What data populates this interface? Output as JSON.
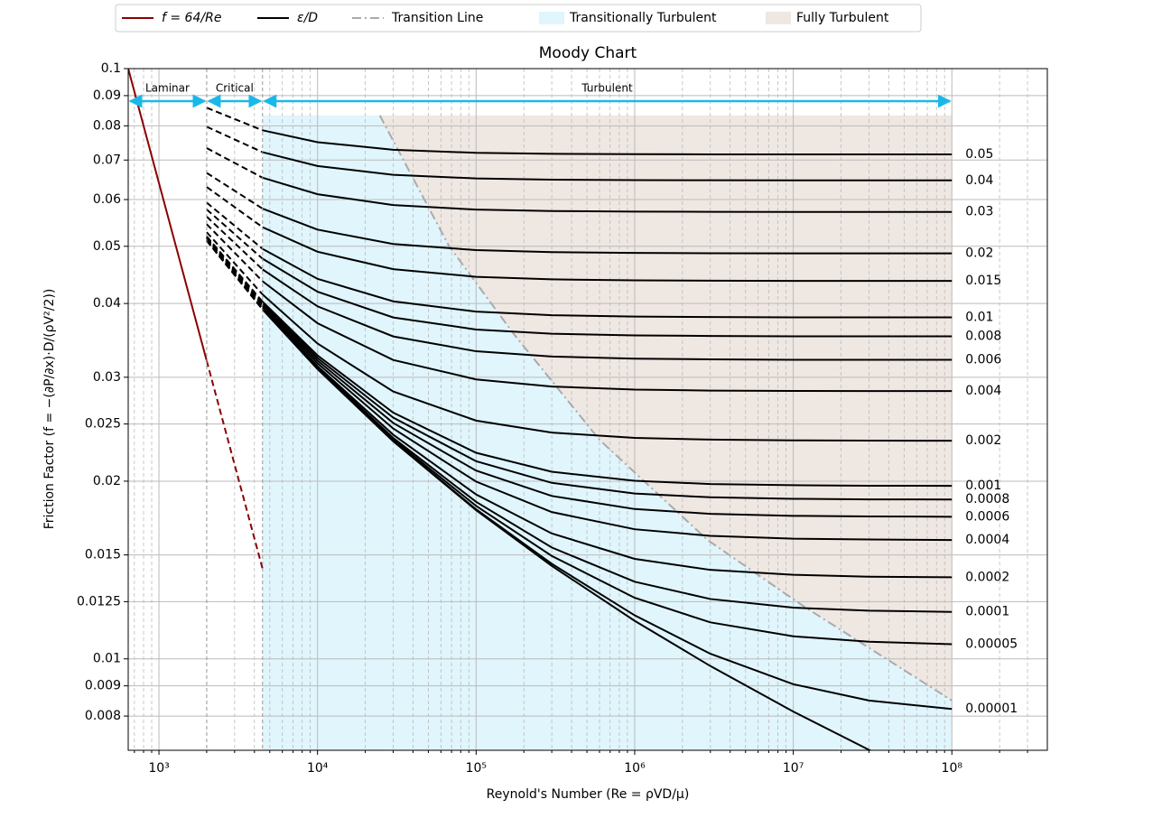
{
  "chart_data": {
    "type": "line",
    "title": "Moody Chart",
    "x_label": "Reynold's Number (Re = ρVD/μ)",
    "y_label": "Friction Factor (f = −(∂P/∂x)·D/(ρV²/2))",
    "xscale": "log",
    "yscale": "log",
    "xlim": [
      640,
      400000000
    ],
    "ylim": [
      0.007,
      0.1
    ],
    "xticks": [
      {
        "value": 1000,
        "label": "10³"
      },
      {
        "value": 10000,
        "label": "10⁴"
      },
      {
        "value": 100000,
        "label": "10⁵"
      },
      {
        "value": 1000000,
        "label": "10⁶"
      },
      {
        "value": 10000000,
        "label": "10⁷"
      },
      {
        "value": 100000000,
        "label": "10⁸"
      }
    ],
    "xticks_minor": [
      700,
      800,
      900,
      2000,
      3000,
      4000,
      5000,
      6000,
      7000,
      8000,
      9000,
      20000,
      30000,
      40000,
      50000,
      60000,
      70000,
      80000,
      90000,
      200000,
      300000,
      400000,
      500000,
      600000,
      700000,
      800000,
      900000,
      2000000,
      3000000,
      4000000,
      5000000,
      6000000,
      7000000,
      8000000,
      9000000,
      20000000,
      30000000,
      40000000,
      50000000,
      60000000,
      70000000,
      80000000,
      90000000,
      200000000,
      300000000
    ],
    "yticks": [
      0.1,
      0.09,
      0.08,
      0.07,
      0.06,
      0.05,
      0.04,
      0.03,
      0.025,
      0.02,
      0.015,
      0.0125,
      0.01,
      0.009,
      0.008
    ],
    "grid": true,
    "legend_position": "top",
    "laminar": {
      "name": "f = 64/Re",
      "color": "#8b0000",
      "x": [
        640,
        2000,
        4500
      ],
      "values": [
        0.1,
        0.032,
        0.01422
      ]
    },
    "roughness_curves": {
      "name": "ε/D",
      "color": "#000000",
      "x": [
        2000,
        4500,
        10000,
        30000,
        100000,
        300000,
        1000000,
        3000000,
        10000000,
        30000000,
        100000000
      ],
      "series": [
        {
          "roughness": 0.05,
          "values": [
            0.08584,
            0.07862,
            0.07505,
            0.07286,
            0.072,
            0.07172,
            0.07161,
            0.07157,
            0.07156,
            0.07155,
            0.07155
          ]
        },
        {
          "roughness": 0.04,
          "values": [
            0.07972,
            0.07218,
            0.0684,
            0.06608,
            0.06515,
            0.06485,
            0.06473,
            0.0647,
            0.06467,
            0.06467,
            0.06467
          ]
        },
        {
          "roughness": 0.03,
          "values": [
            0.07334,
            0.06534,
            0.06127,
            0.05873,
            0.0577,
            0.05737,
            0.05724,
            0.0572,
            0.05717,
            0.05717,
            0.05717
          ]
        },
        {
          "roughness": 0.02,
          "values": [
            0.06658,
            0.05792,
            0.05336,
            0.05045,
            0.04926,
            0.04887,
            0.04872,
            0.04867,
            0.04864,
            0.04864,
            0.04864
          ]
        },
        {
          "roughness": 0.015,
          "values": [
            0.06302,
            0.05387,
            0.04895,
            0.04573,
            0.04439,
            0.04395,
            0.04378,
            0.04372,
            0.04369,
            0.04369,
            0.04369
          ]
        },
        {
          "roughness": 0.01,
          "values": [
            0.05929,
            0.04951,
            0.04404,
            0.04034,
            0.03875,
            0.03822,
            0.03801,
            0.03794,
            0.0379,
            0.0379,
            0.0379
          ]
        },
        {
          "roughness": 0.008,
          "values": [
            0.05773,
            0.04764,
            0.04188,
            0.03788,
            0.03614,
            0.03555,
            0.03532,
            0.03524,
            0.0352,
            0.0352,
            0.0352
          ]
        },
        {
          "roughness": 0.006,
          "values": [
            0.05614,
            0.04569,
            0.03956,
            0.03518,
            0.0332,
            0.03253,
            0.03226,
            0.03217,
            0.03212,
            0.03212,
            0.03212
          ]
        },
        {
          "roughness": 0.004,
          "values": [
            0.05451,
            0.04363,
            0.03704,
            0.03209,
            0.02975,
            0.02893,
            0.02859,
            0.02848,
            0.02844,
            0.02842,
            0.02842
          ]
        },
        {
          "roughness": 0.002,
          "values": [
            0.05283,
            0.04144,
            0.03422,
            0.02838,
            0.02533,
            0.02417,
            0.02368,
            0.02352,
            0.02345,
            0.02343,
            0.02342
          ]
        },
        {
          "roughness": 0.001,
          "values": [
            0.05197,
            0.04029,
            0.03267,
            0.02613,
            0.02234,
            0.02075,
            0.02003,
            0.01978,
            0.01969,
            0.01965,
            0.01964
          ]
        },
        {
          "roughness": 0.0008,
          "values": [
            0.0518,
            0.04005,
            0.03234,
            0.02563,
            0.02162,
            0.01987,
            0.01906,
            0.01878,
            0.01867,
            0.01863,
            0.01862
          ]
        },
        {
          "roughness": 0.0006,
          "values": [
            0.05162,
            0.03981,
            0.03201,
            0.0251,
            0.02084,
            0.01888,
            0.01794,
            0.01761,
            0.01747,
            0.01743,
            0.01741
          ]
        },
        {
          "roughness": 0.0004,
          "values": [
            0.05145,
            0.03957,
            0.03167,
            0.02456,
            0.01997,
            0.01773,
            0.01658,
            0.01616,
            0.01598,
            0.01593,
            0.0159
          ]
        },
        {
          "roughness": 0.0002,
          "values": [
            0.05127,
            0.03933,
            0.03132,
            0.02398,
            0.01899,
            0.01631,
            0.01477,
            0.01415,
            0.01388,
            0.01378,
            0.01375
          ]
        },
        {
          "roughness": 0.0001,
          "values": [
            0.05118,
            0.03921,
            0.03115,
            0.02368,
            0.01845,
            0.01544,
            0.01351,
            0.01263,
            0.01221,
            0.01207,
            0.01201
          ]
        },
        {
          "roughness": 5e-05,
          "values": [
            0.05114,
            0.03915,
            0.03106,
            0.02353,
            0.01816,
            0.01494,
            0.01269,
            0.01153,
            0.01092,
            0.01069,
            0.01059
          ]
        },
        {
          "roughness": 1e-05,
          "values": [
            0.0511,
            0.0391,
            0.03099,
            0.0234,
            0.01792,
            0.01449,
            0.01185,
            0.0102,
            0.009059,
            0.0085,
            0.008224
          ]
        },
        {
          "roughness": null,
          "values": [
            0.0511,
            0.03909,
            0.03097,
            0.02337,
            0.01786,
            0.01437,
            0.0116,
            0.009724,
            0.008142,
            0.007013,
            0.006026
          ]
        }
      ]
    },
    "transition": {
      "name": "Transition Line",
      "color": "#aaaaaa",
      "x": [
        24700,
        67600,
        173000,
        600000,
        2880000,
        11500000,
        100000000
      ],
      "values": [
        0.0833,
        0.05,
        0.0355,
        0.0235,
        0.0159,
        0.0123,
        0.0085
      ]
    },
    "shading": [
      {
        "name": "Transitionally Turbulent",
        "color": "#e0f5fc",
        "range": [
          4500,
          100000000
        ],
        "top": 0.0833
      },
      {
        "name": "Fully Turbulent",
        "color": "#efe7e2",
        "top": 0.0833
      }
    ],
    "regions": [
      {
        "label": "Laminar",
        "range": [
          640,
          2000
        ]
      },
      {
        "label": "Critical",
        "range": [
          2000,
          4500
        ],
        "line_style": "dashed"
      },
      {
        "label": "Turbulent",
        "range": [
          4500,
          100000000
        ]
      }
    ],
    "region_arrow_color": "#1ab8e8"
  }
}
